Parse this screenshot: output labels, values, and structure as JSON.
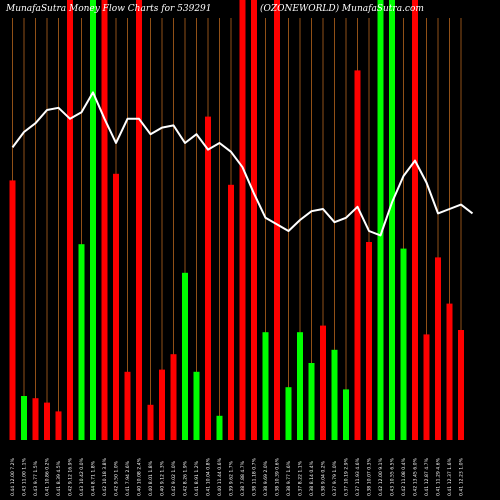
{
  "header": {
    "left": "MunafaSutra  Money Flow  Charts for 539291",
    "right": "(OZONEWORLD) MunafaSutra.com"
  },
  "colors": {
    "background": "#000000",
    "up": "#00ff00",
    "down": "#ff0000",
    "grid": "#b5651d",
    "line": "#ffffff",
    "text": "#ffffff"
  },
  "chart_data": {
    "type": "bar",
    "grid": "vertical lines",
    "ylim": [
      0,
      100
    ],
    "bars": [
      {
        "label": "0.44  12.00 7.2%",
        "value": 59,
        "dir": "down"
      },
      {
        "label": "0.43  11.00 1.1%",
        "value": 10,
        "dir": "up"
      },
      {
        "label": "0.43  9.77 1.5%",
        "value": 9.5,
        "dir": "down"
      },
      {
        "label": "0.41  10.86 0.2%",
        "value": 8.5,
        "dir": "down"
      },
      {
        "label": "0.41  8.39 4.5%",
        "value": 6.5,
        "dir": "down"
      },
      {
        "label": "0.42  9.12 16.9%",
        "value": 100,
        "dir": "down"
      },
      {
        "label": "0.43  10.42 0.0%",
        "value": 44.5,
        "dir": "up"
      },
      {
        "label": "0.44  8.71 1.8%",
        "value": 100,
        "dir": "up"
      },
      {
        "label": "0.42  10.18 3.8%",
        "value": 100,
        "dir": "down"
      },
      {
        "label": "0.42  9.50 1.0%",
        "value": 60.5,
        "dir": "down"
      },
      {
        "label": "0.41  7.94 2.6%",
        "value": 15.5,
        "dir": "down"
      },
      {
        "label": "0.40  10.08 2.4%",
        "value": 100,
        "dir": "down"
      },
      {
        "label": "0.40  8.01 1.8%",
        "value": 8,
        "dir": "down"
      },
      {
        "label": "0.40  9.12 1.3%",
        "value": 16,
        "dir": "down"
      },
      {
        "label": "0.42  9.02 1.0%",
        "value": 19.5,
        "dir": "down"
      },
      {
        "label": "0.42  8.26 1.9%",
        "value": 38,
        "dir": "up"
      },
      {
        "label": "0.41  8.91 1.2%",
        "value": 15.5,
        "dir": "up"
      },
      {
        "label": "0.41  10.04 0.8%",
        "value": 73.5,
        "dir": "down"
      },
      {
        "label": "0.40  11.44 0.6%",
        "value": 5.5,
        "dir": "up"
      },
      {
        "label": "0.39  9.62 1.7%",
        "value": 58,
        "dir": "down"
      },
      {
        "label": "0.38  7.88 4.7%",
        "value": 100,
        "dir": "down"
      },
      {
        "label": "0.38  11.18 0.7%",
        "value": 100,
        "dir": "down"
      },
      {
        "label": "0.38  9.69 2.0%",
        "value": 24.5,
        "dir": "up"
      },
      {
        "label": "0.38  10.39 0.6%",
        "value": 100,
        "dir": "down"
      },
      {
        "label": "0.38  9.77 1.6%",
        "value": 12,
        "dir": "up"
      },
      {
        "label": "0.37  8.22 1.1%",
        "value": 24.5,
        "dir": "up"
      },
      {
        "label": "0.38  8.14 0.4%",
        "value": 17.5,
        "dir": "up"
      },
      {
        "label": "0.38  9.04 0.2%",
        "value": 26,
        "dir": "down"
      },
      {
        "label": "0.37  9.79 1.0%",
        "value": 20.5,
        "dir": "up"
      },
      {
        "label": "0.37  10.19 2.9%",
        "value": 11.5,
        "dir": "up"
      },
      {
        "label": "0.37  11.93 4.6%",
        "value": 84,
        "dir": "down"
      },
      {
        "label": "0.38  10.07 0.3%",
        "value": 45,
        "dir": "down"
      },
      {
        "label": "0.42  12.00 9.1%",
        "value": 100,
        "dir": "up"
      },
      {
        "label": "0.43  10.55 6.5%",
        "value": 100,
        "dir": "up"
      },
      {
        "label": "0.42  11.08 0.4%",
        "value": 43.5,
        "dir": "up"
      },
      {
        "label": "0.42  13.45 6.0%",
        "value": 100,
        "dir": "down"
      },
      {
        "label": "0.41  12.87 4.7%",
        "value": 24,
        "dir": "down"
      },
      {
        "label": "0.41  11.29 4.6%",
        "value": 41.5,
        "dir": "down"
      },
      {
        "label": "0.41  12.37 1.6%",
        "value": 31,
        "dir": "down"
      },
      {
        "label": "0.41  12.23 1.0%",
        "value": 25,
        "dir": "down"
      }
    ],
    "line_values": [
      66.5,
      70,
      72,
      75,
      75.5,
      73,
      74.5,
      79,
      73,
      67.5,
      73,
      73,
      69.5,
      71,
      71.5,
      67.5,
      69.5,
      66,
      67.5,
      65.5,
      62,
      56,
      50.5,
      49,
      47.5,
      50,
      52,
      52.5,
      49.5,
      50.5,
      53,
      47.5,
      46.5,
      54,
      60,
      63.5,
      58.5,
      51.5,
      52.5,
      53.5,
      51.5
    ]
  }
}
